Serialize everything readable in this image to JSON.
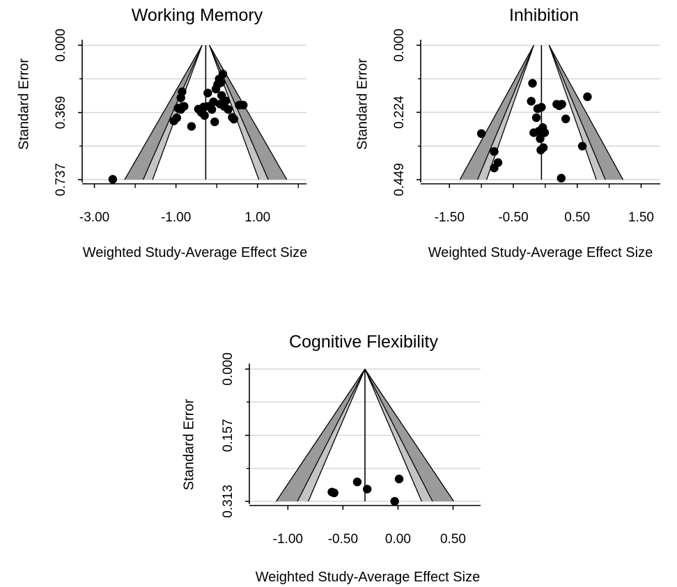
{
  "chart_data": [
    {
      "type": "scatter",
      "subtype": "funnel-plot",
      "title": "Working Memory",
      "xlabel": "Weighted Study-Average Effect Size",
      "ylabel": "Standard Error",
      "xlim": [
        -3.3,
        2.2
      ],
      "ylim": [
        0.737,
        0.0
      ],
      "y_inverted": true,
      "xticks": [
        "-3.00",
        "-1.00",
        "1.00"
      ],
      "xtick_values": [
        -3.0,
        -1.0,
        1.0
      ],
      "minor_xtick_values": [
        -2.0,
        0.0,
        2.0
      ],
      "yticks": [
        "0.000",
        "0.369",
        "0.737"
      ],
      "ytick_values": [
        0.0,
        0.369,
        0.737
      ],
      "gridlines_y": [
        0.0,
        0.184,
        0.369,
        0.553,
        0.737
      ],
      "grid": true,
      "center_line": -0.27,
      "funnel_type": "curved",
      "funnel_z": [
        1.645,
        1.96,
        2.576
      ],
      "funnel_base_halfwidth": 0.09,
      "points": [
        {
          "x": -2.55,
          "y": 0.735
        },
        {
          "x": -0.85,
          "y": 0.255
        },
        {
          "x": -0.88,
          "y": 0.288
        },
        {
          "x": -0.8,
          "y": 0.335
        },
        {
          "x": -0.95,
          "y": 0.345
        },
        {
          "x": -0.88,
          "y": 0.352
        },
        {
          "x": -0.98,
          "y": 0.398
        },
        {
          "x": -1.05,
          "y": 0.415
        },
        {
          "x": -0.62,
          "y": 0.445
        },
        {
          "x": -0.45,
          "y": 0.35
        },
        {
          "x": -0.38,
          "y": 0.368
        },
        {
          "x": -0.32,
          "y": 0.338
        },
        {
          "x": -0.3,
          "y": 0.385
        },
        {
          "x": -0.22,
          "y": 0.262
        },
        {
          "x": -0.2,
          "y": 0.335
        },
        {
          "x": -0.12,
          "y": 0.352
        },
        {
          "x": -0.08,
          "y": 0.31
        },
        {
          "x": -0.05,
          "y": 0.42
        },
        {
          "x": -0.02,
          "y": 0.24
        },
        {
          "x": 0.02,
          "y": 0.215
        },
        {
          "x": 0.06,
          "y": 0.185
        },
        {
          "x": 0.1,
          "y": 0.205
        },
        {
          "x": 0.12,
          "y": 0.275
        },
        {
          "x": 0.15,
          "y": 0.158
        },
        {
          "x": 0.08,
          "y": 0.322
        },
        {
          "x": 0.18,
          "y": 0.335
        },
        {
          "x": 0.22,
          "y": 0.305
        },
        {
          "x": 0.28,
          "y": 0.352
        },
        {
          "x": 0.38,
          "y": 0.395
        },
        {
          "x": 0.42,
          "y": 0.405
        },
        {
          "x": 0.55,
          "y": 0.328
        },
        {
          "x": 0.65,
          "y": 0.328
        }
      ]
    },
    {
      "type": "scatter",
      "subtype": "funnel-plot",
      "title": "Inhibition",
      "xlabel": "Weighted Study-Average Effect Size",
      "ylabel": "Standard Error",
      "xlim": [
        -1.95,
        1.8
      ],
      "ylim": [
        0.449,
        0.0
      ],
      "y_inverted": true,
      "xticks": [
        "-1.50",
        "-0.50",
        "0.50",
        "1.50"
      ],
      "xtick_values": [
        -1.5,
        -0.5,
        0.5,
        1.5
      ],
      "minor_xtick_values": [
        -1.0,
        0.0,
        1.0
      ],
      "yticks": [
        "0.000",
        "0.224",
        "0.449"
      ],
      "ytick_values": [
        0.0,
        0.224,
        0.449
      ],
      "gridlines_y": [
        0.0,
        0.112,
        0.224,
        0.337,
        0.449
      ],
      "grid": true,
      "center_line": -0.06,
      "funnel_type": "curved",
      "funnel_z": [
        1.645,
        1.96,
        2.576
      ],
      "funnel_base_halfwidth": 0.12,
      "points": [
        {
          "x": -1.0,
          "y": 0.295
        },
        {
          "x": -0.8,
          "y": 0.355
        },
        {
          "x": -0.74,
          "y": 0.392
        },
        {
          "x": -0.8,
          "y": 0.41
        },
        {
          "x": -0.2,
          "y": 0.127
        },
        {
          "x": -0.22,
          "y": 0.187
        },
        {
          "x": -0.12,
          "y": 0.212
        },
        {
          "x": -0.06,
          "y": 0.207
        },
        {
          "x": -0.14,
          "y": 0.242
        },
        {
          "x": -0.18,
          "y": 0.292
        },
        {
          "x": -0.1,
          "y": 0.287
        },
        {
          "x": -0.04,
          "y": 0.275
        },
        {
          "x": -0.01,
          "y": 0.292
        },
        {
          "x": -0.08,
          "y": 0.312
        },
        {
          "x": -0.03,
          "y": 0.342
        },
        {
          "x": -0.07,
          "y": 0.35
        },
        {
          "x": 0.18,
          "y": 0.197
        },
        {
          "x": 0.22,
          "y": 0.202
        },
        {
          "x": 0.26,
          "y": 0.197
        },
        {
          "x": 0.32,
          "y": 0.246
        },
        {
          "x": 0.58,
          "y": 0.337
        },
        {
          "x": 0.66,
          "y": 0.172
        },
        {
          "x": 0.25,
          "y": 0.444
        }
      ]
    },
    {
      "type": "scatter",
      "subtype": "funnel-plot",
      "title": "Cognitive Flexibility",
      "xlabel": "Weighted Study-Average Effect Size",
      "ylabel": "Standard Error",
      "xlim": [
        -1.35,
        0.75
      ],
      "ylim": [
        0.313,
        0.0
      ],
      "y_inverted": true,
      "xticks": [
        "-1.00",
        "-0.50",
        "0.00",
        "0.50"
      ],
      "xtick_values": [
        -1.0,
        -0.5,
        0.0,
        0.5
      ],
      "minor_xtick_values": [],
      "yticks": [
        "0.000",
        "0.157",
        "0.313"
      ],
      "ytick_values": [
        0.0,
        0.157,
        0.313
      ],
      "gridlines_y": [
        0.0,
        0.078,
        0.157,
        0.235,
        0.313
      ],
      "grid": true,
      "center_line": -0.3,
      "funnel_type": "straight",
      "funnel_z": [
        1.645,
        1.96,
        2.576
      ],
      "funnel_base_halfwidth": 0.0,
      "points": [
        {
          "x": -0.6,
          "y": 0.291
        },
        {
          "x": -0.58,
          "y": 0.293
        },
        {
          "x": -0.37,
          "y": 0.267
        },
        {
          "x": -0.28,
          "y": 0.284
        },
        {
          "x": -0.03,
          "y": 0.313
        },
        {
          "x": 0.01,
          "y": 0.26
        }
      ]
    }
  ],
  "style": {
    "funnel_outer_color": "#9a9a9a",
    "funnel_inner_color": "#c4c4c4",
    "grid_color": "#d6d6d6",
    "point_color": "#000000",
    "line_color": "#000000"
  }
}
